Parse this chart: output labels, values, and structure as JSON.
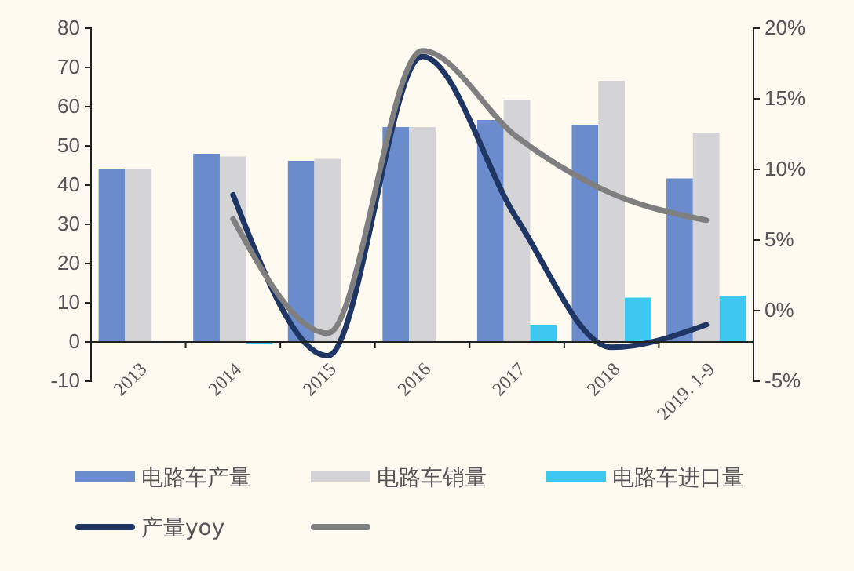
{
  "chart_data": {
    "type": "bar",
    "categories": [
      "2013",
      "2014",
      "2015",
      "2016",
      "2017",
      "2018",
      "2019. 1-9"
    ],
    "series": [
      {
        "name": "电路车产量",
        "color": "#6a8ccc",
        "values": [
          44.2,
          48.0,
          46.2,
          54.8,
          56.6,
          55.4,
          41.7
        ]
      },
      {
        "name": "电路车销量",
        "color": "#d4d3d6",
        "values": [
          44.2,
          47.3,
          46.7,
          54.8,
          61.8,
          66.6,
          53.4
        ]
      },
      {
        "name": "电路车进口量",
        "color": "#3ec8f0",
        "values": [
          null,
          -0.5,
          null,
          null,
          4.4,
          11.3,
          11.8
        ]
      },
      {
        "name": "产量yoy",
        "type": "line",
        "axis": "y2",
        "color": "#1f3564",
        "values": [
          null,
          8.2,
          -3.2,
          18.0,
          6.5,
          -2.6,
          -1.0
        ]
      },
      {
        "type": "line",
        "axis": "y2",
        "color": "#7f7f7f",
        "values": [
          null,
          6.5,
          -1.6,
          18.4,
          12.3,
          8.3,
          6.4
        ]
      }
    ],
    "ylim": [
      -10,
      80
    ],
    "yticks": [
      -10,
      0,
      10,
      20,
      30,
      40,
      50,
      60,
      70,
      80
    ],
    "y2lim": [
      -5,
      20
    ],
    "y2ticks": [
      {
        "value": -5,
        "label": "-5%"
      },
      {
        "value": 0,
        "label": "0%"
      },
      {
        "value": 5,
        "label": "5%"
      },
      {
        "value": 10,
        "label": "10%"
      },
      {
        "value": 15,
        "label": "15%"
      },
      {
        "value": 20,
        "label": "20%"
      }
    ],
    "grid": false,
    "legend": "bottom"
  }
}
